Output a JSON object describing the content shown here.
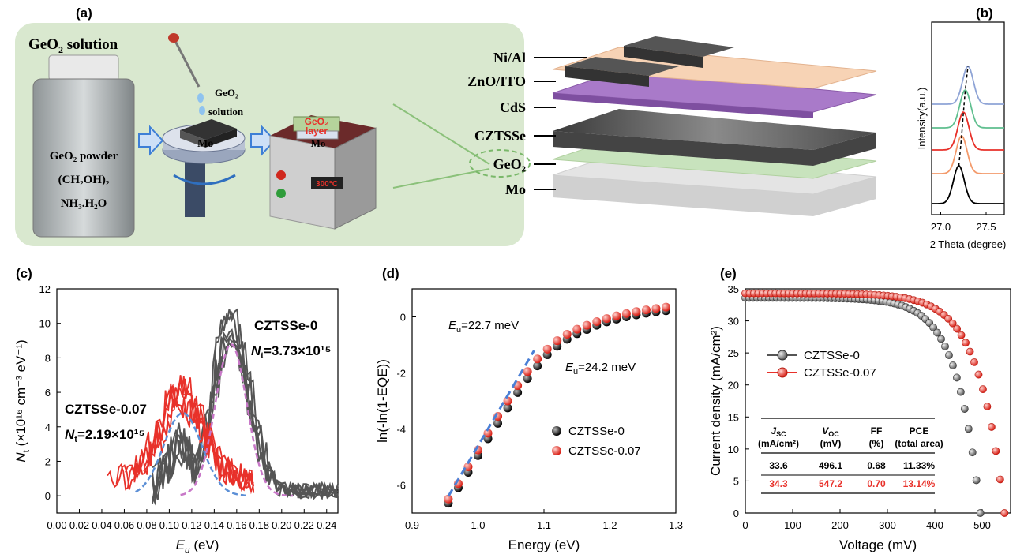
{
  "panels": {
    "a": "(a)",
    "b": "(b)",
    "c": "(c)",
    "d": "(d)",
    "e": "(e)"
  },
  "schematic": {
    "solution_title_main": "GeO",
    "solution_title_sub": "2",
    "solution_title_rest": " solution",
    "bottle_lines": [
      "GeO₂ powder",
      "(CH₂OH)₂",
      "NH₃.H₂O"
    ],
    "drop_label_1": "GeO₂",
    "drop_label_2": "solution",
    "spin_substrate": "Mo",
    "hot_layer_1": "GeO₂",
    "hot_layer_2": "layer",
    "hot_substrate": "Mo",
    "hot_temp": "300°C",
    "stack_layers": [
      "Ni/Al",
      "ZnO/ITO",
      "CdS",
      "CZTSSe",
      "GeO₂",
      "Mo"
    ]
  },
  "chart_data": [
    {
      "id": "b",
      "type": "line",
      "title": "",
      "xlabel": "2 Theta (degree)",
      "ylabel": "Intensity(a.u.)",
      "xlim": [
        26.9,
        27.7
      ],
      "xticks": [
        27.0,
        27.5
      ],
      "peak_positions": [
        27.2,
        27.23,
        27.25,
        27.27,
        27.3
      ],
      "series_colors": [
        "#000000",
        "#f39a6b",
        "#e8312a",
        "#5fbf8f",
        "#8fa4d6"
      ]
    },
    {
      "id": "c",
      "type": "line",
      "title": "",
      "xlabel": "E",
      "xlabel_sub": "u",
      "xlabel_unit": " (eV)",
      "ylabel": "N",
      "ylabel_sub": "t",
      "ylabel_unit": " (×10¹⁶ cm⁻³ eV⁻¹)",
      "xlim": [
        0.0,
        0.25
      ],
      "ylim": [
        -1,
        12
      ],
      "xticks": [
        0.0,
        0.02,
        0.04,
        0.06,
        0.08,
        0.1,
        0.12,
        0.14,
        0.16,
        0.18,
        0.2,
        0.22,
        0.24
      ],
      "yticks": [
        0,
        2,
        4,
        6,
        8,
        10,
        12
      ],
      "annotations": {
        "s0_name": "CZTSSe-0",
        "s0_nt": "N",
        "s0_nt_sub": "t",
        "s0_nt_val": "=3.73×10¹⁵",
        "s1_name": "CZTSSe-0.07",
        "s1_nt": "N",
        "s1_nt_sub": "t",
        "s1_nt_val": "=2.19×10¹⁵"
      },
      "series": [
        {
          "name": "CZTSSe-0",
          "color": "#555555",
          "peak_center": 0.155,
          "peak_height": 8.8
        },
        {
          "name": "CZTSSe-0.07",
          "color": "#e8312a",
          "peak_center": 0.112,
          "peak_height": 4.8
        }
      ]
    },
    {
      "id": "d",
      "type": "scatter",
      "title": "",
      "xlabel": "Energy (eV)",
      "ylabel": "ln(-ln(1-EQE))",
      "xlim": [
        0.9,
        1.3
      ],
      "ylim": [
        -7,
        1
      ],
      "xticks": [
        0.9,
        1.0,
        1.1,
        1.2,
        1.3
      ],
      "yticks": [
        0,
        -2,
        -4,
        -6
      ],
      "annotations": {
        "eu_red_E": "E",
        "eu_red_sub": "u",
        "eu_red_val": "=22.7 meV",
        "eu_black_E": "E",
        "eu_black_sub": "u",
        "eu_black_val": "=24.2 meV"
      },
      "legend": [
        "CZTSSe-0",
        "CZTSSe-0.07"
      ],
      "series": [
        {
          "name": "CZTSSe-0",
          "color": "#000000",
          "x": [
            0.955,
            0.97,
            0.985,
            1.0,
            1.015,
            1.03,
            1.045,
            1.06,
            1.075,
            1.09,
            1.105,
            1.12,
            1.135,
            1.15,
            1.165,
            1.18,
            1.195,
            1.21,
            1.225,
            1.24,
            1.255,
            1.27,
            1.285
          ],
          "y": [
            -6.65,
            -6.1,
            -5.55,
            -4.95,
            -4.35,
            -3.8,
            -3.25,
            -2.7,
            -2.2,
            -1.75,
            -1.35,
            -1.05,
            -0.8,
            -0.6,
            -0.45,
            -0.3,
            -0.18,
            -0.08,
            0.0,
            0.07,
            0.13,
            0.18,
            0.22
          ]
        },
        {
          "name": "CZTSSe-0.07",
          "color": "#e8312a",
          "x": [
            0.955,
            0.97,
            0.985,
            1.0,
            1.015,
            1.03,
            1.045,
            1.06,
            1.075,
            1.09,
            1.105,
            1.12,
            1.135,
            1.15,
            1.165,
            1.18,
            1.195,
            1.21,
            1.225,
            1.24,
            1.255,
            1.27,
            1.285
          ],
          "y": [
            -6.5,
            -5.95,
            -5.35,
            -4.75,
            -4.15,
            -3.55,
            -3.0,
            -2.45,
            -1.95,
            -1.5,
            -1.15,
            -0.85,
            -0.62,
            -0.44,
            -0.3,
            -0.17,
            -0.06,
            0.04,
            0.12,
            0.19,
            0.25,
            0.3,
            0.35
          ]
        }
      ]
    },
    {
      "id": "e",
      "type": "line",
      "title": "",
      "xlabel": "Voltage (mV)",
      "ylabel": "Current density (mA/cm²)",
      "xlim": [
        0,
        560
      ],
      "ylim": [
        0,
        35
      ],
      "xticks": [
        0,
        100,
        200,
        300,
        400,
        500
      ],
      "yticks": [
        0,
        5,
        10,
        15,
        20,
        25,
        30,
        35
      ],
      "legend": [
        "CZTSSe-0",
        "CZTSSe-0.07"
      ],
      "series": [
        {
          "name": "CZTSSe-0",
          "color": "#555555",
          "jsc": 33.6,
          "voc": 496.1
        },
        {
          "name": "CZTSSe-0.07",
          "color": "#e8312a",
          "jsc": 34.3,
          "voc": 547.2
        }
      ],
      "table": {
        "headers": [
          {
            "main": "J",
            "sub": "SC",
            "unit": "(mA/cm²)"
          },
          {
            "main": "V",
            "sub": "OC",
            "unit": "(mV)"
          },
          {
            "main": "FF",
            "sub": "",
            "unit": "(%)"
          },
          {
            "main": "PCE",
            "sub": "",
            "unit": "(total area)"
          }
        ],
        "rows": [
          {
            "values": [
              "33.6",
              "496.1",
              "0.68",
              "11.33%"
            ],
            "color": "#000000"
          },
          {
            "values": [
              "34.3",
              "547.2",
              "0.70",
              "13.14%"
            ],
            "color": "#e8312a"
          }
        ]
      }
    }
  ]
}
